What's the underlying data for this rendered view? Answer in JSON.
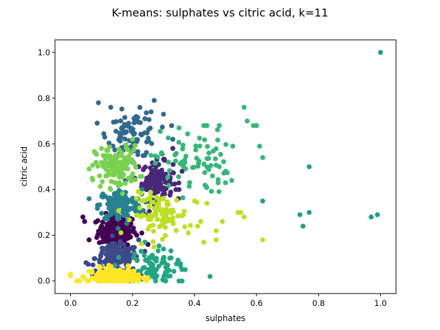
{
  "chart_data": {
    "type": "scatter",
    "title": "K-means: sulphates vs citric acid, k=11",
    "xlabel": "sulphates",
    "ylabel": "citric acid",
    "xlim": [
      -0.05,
      1.05
    ],
    "ylim": [
      -0.055,
      1.055
    ],
    "xticks": [
      "0.0",
      "0.2",
      "0.4",
      "0.6",
      "0.8",
      "1.0"
    ],
    "yticks": [
      "0.0",
      "0.2",
      "0.4",
      "0.6",
      "0.8",
      "1.0"
    ],
    "grid": false,
    "legend": "none",
    "clusters": [
      {
        "color": "#440154",
        "cx": 0.15,
        "cy": 0.22,
        "sx": 0.03,
        "sy": 0.035,
        "n": 180,
        "points": [
          [
            0.04,
            0.28
          ],
          [
            0.06,
            0.18
          ],
          [
            0.24,
            0.29
          ],
          [
            0.25,
            0.16
          ],
          [
            0.23,
            0.21
          ]
        ]
      },
      {
        "color": "#482878",
        "cx": 0.28,
        "cy": 0.44,
        "sx": 0.025,
        "sy": 0.04,
        "n": 120,
        "points": [
          [
            0.33,
            0.58
          ],
          [
            0.36,
            0.48
          ],
          [
            0.35,
            0.4
          ],
          [
            0.34,
            0.4
          ],
          [
            0.22,
            0.5
          ]
        ]
      },
      {
        "color": "#3e4989",
        "cx": 0.15,
        "cy": 0.1,
        "sx": 0.035,
        "sy": 0.03,
        "n": 150,
        "points": [
          [
            0.05,
            0.08
          ],
          [
            0.24,
            0.13
          ],
          [
            0.22,
            0.18
          ]
        ]
      },
      {
        "color": "#31688e",
        "cx": 0.2,
        "cy": 0.64,
        "sx": 0.04,
        "sy": 0.05,
        "n": 90,
        "points": [
          [
            0.09,
            0.78
          ],
          [
            0.27,
            0.79
          ],
          [
            0.13,
            0.76
          ],
          [
            0.26,
            0.74
          ],
          [
            0.24,
            0.71
          ],
          [
            0.3,
            0.73
          ],
          [
            0.33,
            0.62
          ]
        ]
      },
      {
        "color": "#26828e",
        "cx": 0.16,
        "cy": 0.33,
        "sx": 0.035,
        "sy": 0.035,
        "n": 140,
        "points": [
          [
            0.06,
            0.36
          ],
          [
            0.23,
            0.29
          ],
          [
            0.23,
            0.38
          ]
        ]
      },
      {
        "color": "#1f9e89",
        "cx": 0.7,
        "cy": 0.4,
        "sx": 0.01,
        "sy": 0.01,
        "n": 0,
        "points": [
          [
            1.0,
            1.0
          ],
          [
            0.77,
            0.5
          ],
          [
            0.62,
            0.35
          ],
          [
            0.77,
            0.3
          ],
          [
            0.99,
            0.29
          ],
          [
            0.74,
            0.29
          ],
          [
            0.97,
            0.28
          ],
          [
            0.75,
            0.24
          ]
        ]
      },
      {
        "color": "#21a685",
        "cx": 0.26,
        "cy": 0.06,
        "sx": 0.04,
        "sy": 0.04,
        "n": 90,
        "points": [
          [
            0.45,
            0.02
          ],
          [
            0.35,
            0.0
          ],
          [
            0.36,
            0.0
          ],
          [
            0.32,
            0.1
          ],
          [
            0.3,
            0.14
          ],
          [
            0.36,
            0.05
          ],
          [
            0.37,
            0.05
          ],
          [
            0.24,
            0.17
          ]
        ]
      },
      {
        "color": "#35b779",
        "cx": 0.39,
        "cy": 0.52,
        "sx": 0.06,
        "sy": 0.07,
        "n": 70,
        "points": [
          [
            0.56,
            0.76
          ],
          [
            0.57,
            0.7
          ],
          [
            0.59,
            0.68
          ],
          [
            0.6,
            0.68
          ],
          [
            0.48,
            0.68
          ],
          [
            0.43,
            0.68
          ],
          [
            0.44,
            0.68
          ],
          [
            0.61,
            0.59
          ],
          [
            0.62,
            0.54
          ],
          [
            0.52,
            0.44
          ],
          [
            0.5,
            0.43
          ],
          [
            0.48,
            0.5
          ],
          [
            0.5,
            0.48
          ],
          [
            0.35,
            0.67
          ]
        ]
      },
      {
        "color": "#7ad151",
        "cx": 0.15,
        "cy": 0.5,
        "sx": 0.035,
        "sy": 0.045,
        "n": 130,
        "points": [
          [
            0.06,
            0.49
          ],
          [
            0.07,
            0.45
          ],
          [
            0.2,
            0.62
          ],
          [
            0.1,
            0.58
          ]
        ]
      },
      {
        "color": "#bddf26",
        "cx": 0.29,
        "cy": 0.29,
        "sx": 0.045,
        "sy": 0.045,
        "n": 100,
        "points": [
          [
            0.56,
            0.28
          ],
          [
            0.62,
            0.18
          ],
          [
            0.55,
            0.3
          ],
          [
            0.49,
            0.26
          ],
          [
            0.47,
            0.22
          ],
          [
            0.42,
            0.26
          ],
          [
            0.43,
            0.17
          ],
          [
            0.47,
            0.18
          ],
          [
            0.41,
            0.24
          ],
          [
            0.4,
            0.35
          ],
          [
            0.44,
            0.34
          ],
          [
            0.54,
            0.3
          ],
          [
            0.38,
            0.21
          ],
          [
            0.33,
            0.26
          ]
        ]
      },
      {
        "color": "#fde725",
        "cx": 0.14,
        "cy": 0.02,
        "sx": 0.04,
        "sy": 0.018,
        "n": 200,
        "points": [
          [
            0.0,
            0.03
          ],
          [
            0.02,
            0.0
          ],
          [
            0.03,
            0.0
          ],
          [
            0.04,
            0.02
          ],
          [
            0.2,
            0.04
          ],
          [
            0.22,
            0.0
          ]
        ]
      }
    ]
  }
}
